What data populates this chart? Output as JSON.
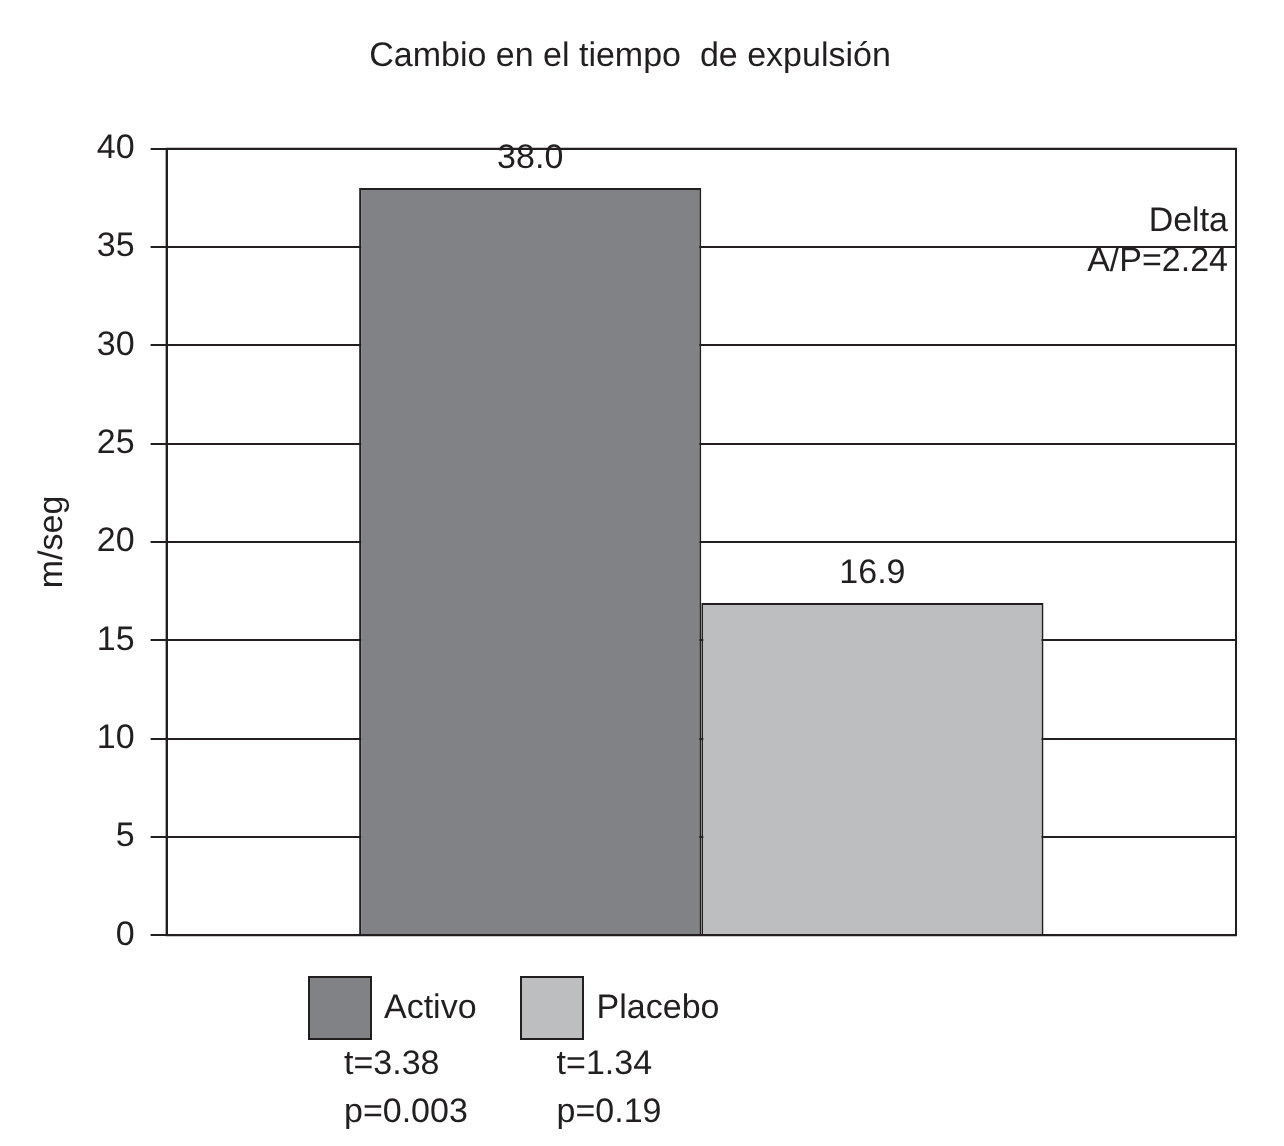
{
  "chart_data": {
    "type": "bar",
    "title": "Cambio en el tiempo  de expulsión",
    "ylabel": "m/seg",
    "categories": [
      null
    ],
    "series": [
      {
        "name": "Activo",
        "color": "#808285",
        "values": [
          38.0
        ],
        "value_labels": [
          "38.0"
        ]
      },
      {
        "name": "Placebo",
        "color": "#bcbec0",
        "values": [
          16.9
        ],
        "value_labels": [
          "16.9"
        ]
      }
    ],
    "ylim": [
      0,
      40
    ],
    "yticks": [
      0,
      5,
      10,
      15,
      20,
      25,
      30,
      35,
      40
    ],
    "grid": "y",
    "legend": "bottom",
    "annotations": [
      "Delta",
      "A/P=2.24",
      "t=3.38",
      "p=0.003",
      "t=1.34",
      "p=0.19"
    ]
  }
}
